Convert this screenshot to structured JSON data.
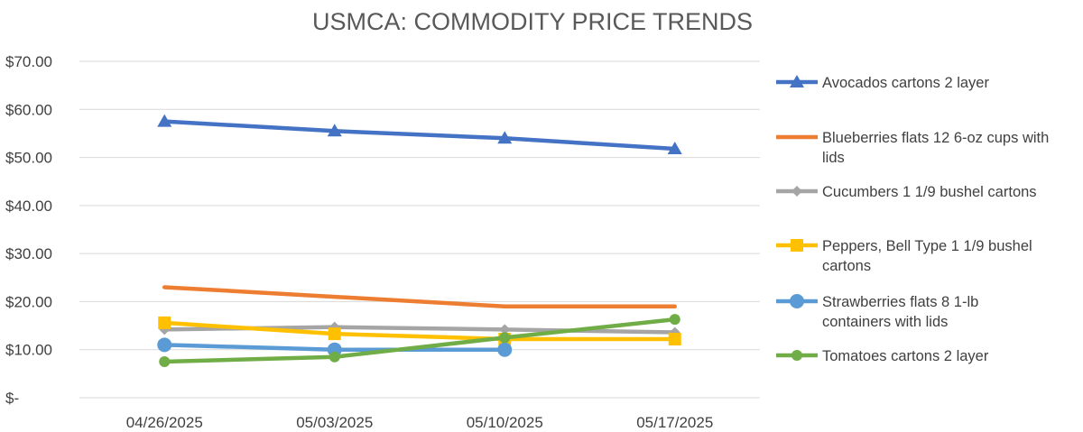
{
  "chart_data": {
    "type": "line",
    "title": "USMCA: COMMODITY PRICE TRENDS",
    "categories": [
      "04/26/2025",
      "05/03/2025",
      "05/10/2025",
      "05/17/2025"
    ],
    "ylim": [
      0,
      70
    ],
    "y_ticks": [
      {
        "value": 0,
        "label": "$-"
      },
      {
        "value": 10,
        "label": "$10.00"
      },
      {
        "value": 20,
        "label": "$20.00"
      },
      {
        "value": 30,
        "label": "$30.00"
      },
      {
        "value": 40,
        "label": "$40.00"
      },
      {
        "value": 50,
        "label": "$50.00"
      },
      {
        "value": 60,
        "label": "$60.00"
      },
      {
        "value": 70,
        "label": "$70.00"
      }
    ],
    "grid": true,
    "legend_position": "right",
    "series": [
      {
        "name": "Avocados cartons 2 layer",
        "legend_lines": [
          "Avocados cartons 2 layer"
        ],
        "color": "#4472c4",
        "marker": "triangle",
        "values": [
          57.5,
          55.5,
          54.0,
          51.8
        ]
      },
      {
        "name": "Blueberries flats 12 6-oz cups with lids",
        "legend_lines": [
          "Blueberries flats 12 6-oz cups with",
          "lids"
        ],
        "color": "#ed7d31",
        "marker": "none",
        "values": [
          23.0,
          21.0,
          19.0,
          19.0
        ]
      },
      {
        "name": "Cucumbers 1 1/9 bushel cartons",
        "legend_lines": [
          "Cucumbers 1 1/9 bushel cartons"
        ],
        "color": "#a5a5a5",
        "marker": "diamond",
        "values": [
          14.2,
          14.7,
          14.2,
          13.6
        ]
      },
      {
        "name": "Peppers, Bell Type 1 1/9 bushel cartons",
        "legend_lines": [
          "Peppers, Bell Type 1 1/9 bushel",
          "cartons"
        ],
        "color": "#ffc000",
        "marker": "square",
        "values": [
          15.6,
          13.3,
          12.2,
          12.2
        ]
      },
      {
        "name": "Strawberries flats 8 1-lb containers with lids",
        "legend_lines": [
          "Strawberries flats 8 1-lb",
          "containers with lids"
        ],
        "color": "#5b9bd5",
        "marker": "circle",
        "values": [
          11.0,
          10.0,
          10.0,
          null
        ]
      },
      {
        "name": "Tomatoes cartons 2 layer",
        "legend_lines": [
          "Tomatoes cartons 2 layer"
        ],
        "color": "#70ad47",
        "marker": "circle-small",
        "values": [
          7.5,
          8.5,
          12.5,
          16.3
        ]
      }
    ]
  }
}
